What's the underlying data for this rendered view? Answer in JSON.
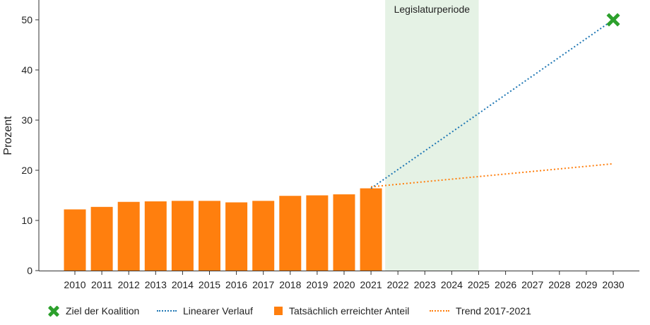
{
  "chart_data": {
    "type": "bar",
    "categories": [
      "2010",
      "2011",
      "2012",
      "2013",
      "2014",
      "2015",
      "2016",
      "2017",
      "2018",
      "2019",
      "2020",
      "2021",
      "2022",
      "2023",
      "2024",
      "2025",
      "2026",
      "2027",
      "2028",
      "2029",
      "2030"
    ],
    "title": "",
    "xlabel": "",
    "ylabel": "Prozent",
    "ylim": [
      0,
      53
    ],
    "yticks": [
      0,
      10,
      20,
      30,
      40,
      50
    ],
    "grid": false,
    "legend_position": "bottom",
    "colors": {
      "bar": "#ff7f0e",
      "linear": "#1f77b4",
      "trend": "#ff7f0e",
      "target": "#2ca02c",
      "band": "#e5f2e5"
    },
    "series": [
      {
        "name": "Tatsächlich erreichter Anteil",
        "kind": "bar",
        "x": [
          "2010",
          "2011",
          "2012",
          "2013",
          "2014",
          "2015",
          "2016",
          "2017",
          "2018",
          "2019",
          "2020",
          "2021"
        ],
        "values": [
          12.2,
          12.7,
          13.7,
          13.8,
          13.9,
          13.9,
          13.6,
          13.9,
          14.9,
          15.0,
          15.2,
          16.4
        ]
      },
      {
        "name": "Linearer Verlauf",
        "kind": "line-dotted",
        "points": [
          [
            "2021",
            16.4
          ],
          [
            "2030",
            50
          ]
        ]
      },
      {
        "name": "Trend 2017-2021",
        "kind": "line-dotted",
        "points": [
          [
            "2021",
            16.7
          ],
          [
            "2030",
            21.3
          ]
        ]
      },
      {
        "name": "Ziel der Koalition",
        "kind": "marker",
        "points": [
          [
            "2030",
            50
          ]
        ]
      }
    ],
    "annotations": [
      {
        "label": "Legislaturperiode",
        "kind": "band",
        "from": "2022",
        "to": "2025"
      }
    ]
  },
  "legend": [
    {
      "symbol": "x-marker",
      "label": "Ziel der Koalition"
    },
    {
      "symbol": "dotted-line-blue",
      "label": "Linearer Verlauf"
    },
    {
      "symbol": "square",
      "label": "Tatsächlich erreichter Anteil"
    },
    {
      "symbol": "dotted-line-orange",
      "label": "Trend 2017-2021"
    }
  ]
}
